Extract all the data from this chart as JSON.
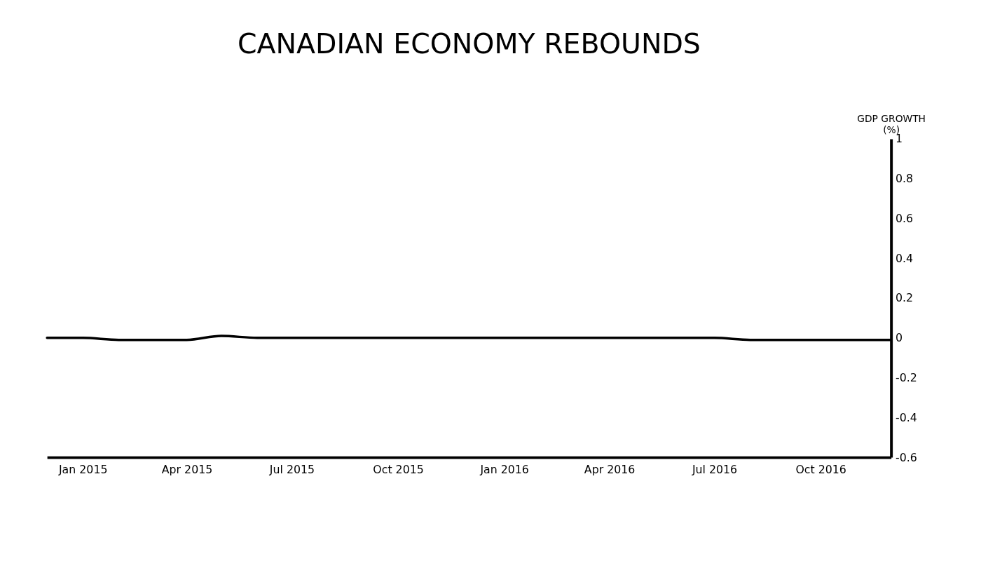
{
  "chart_data": {
    "type": "line",
    "title": "CANADIAN ECONOMY REBOUNDS",
    "ylabel": "GDP GROWTH (%)",
    "x": [
      "2014-12",
      "2015-01",
      "2015-02",
      "2015-03",
      "2015-04",
      "2015-05",
      "2015-06",
      "2015-07",
      "2015-08",
      "2015-09",
      "2015-10",
      "2015-11",
      "2015-12",
      "2016-01",
      "2016-02",
      "2016-03",
      "2016-04",
      "2016-05",
      "2016-06",
      "2016-07",
      "2016-08",
      "2016-09",
      "2016-10",
      "2016-11",
      "2016-12"
    ],
    "series": [
      {
        "color": "#000000",
        "values": [
          0,
          0,
          -0.01,
          -0.01,
          -0.01,
          0.01,
          0,
          0,
          0,
          0,
          0,
          0,
          0,
          0,
          0,
          0,
          0,
          0,
          0,
          0,
          -0.01,
          -0.01,
          -0.01,
          -0.01,
          -0.01
        ]
      }
    ],
    "xlim": [
      "2014-12",
      "2016-12"
    ],
    "xticks": [
      {
        "value": "2015-01",
        "label": "Jan 2015"
      },
      {
        "value": "2015-04",
        "label": "Apr 2015"
      },
      {
        "value": "2015-07",
        "label": "Jul 2015"
      },
      {
        "value": "2015-10",
        "label": "Oct 2015"
      },
      {
        "value": "2016-01",
        "label": "Jan 2016"
      },
      {
        "value": "2016-04",
        "label": "Apr 2016"
      },
      {
        "value": "2016-07",
        "label": "Jul 2016"
      },
      {
        "value": "2016-10",
        "label": "Oct 2016"
      }
    ],
    "ylim": [
      -0.6,
      1
    ],
    "yticks": [
      -0.6,
      -0.4,
      -0.2,
      0,
      0.2,
      0.4,
      0.6,
      0.8,
      1
    ],
    "grid": false,
    "legend": false,
    "line_style": "solid",
    "marker": "none"
  }
}
